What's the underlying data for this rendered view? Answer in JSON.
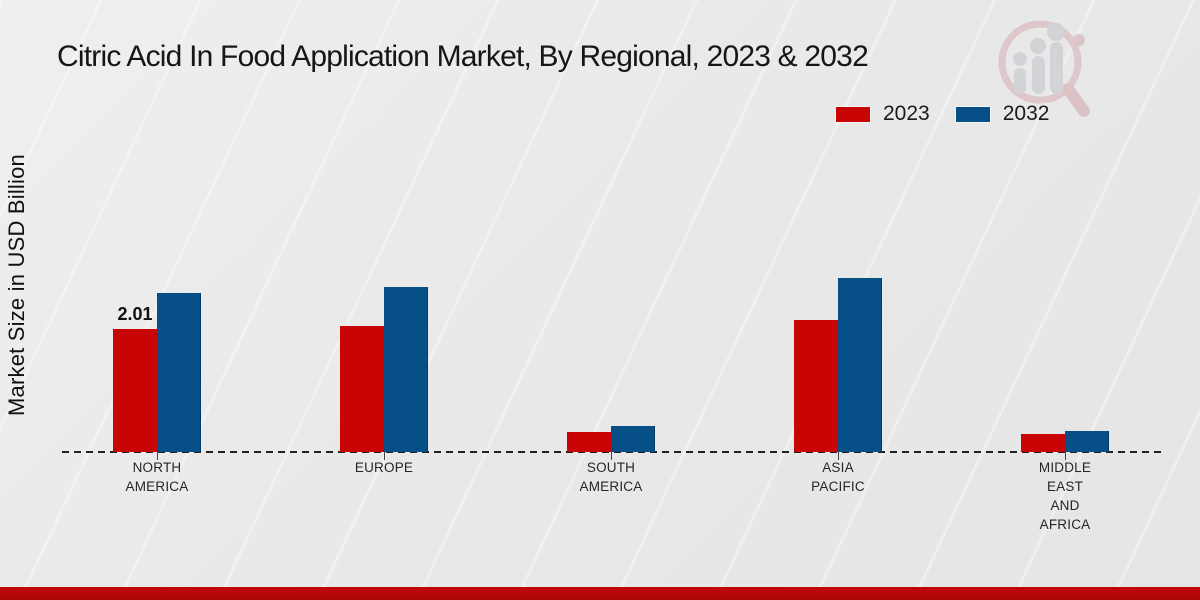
{
  "page": {
    "title": "Citric Acid In Food Application Market, By Regional, 2023 & 2032",
    "ylabel": "Market Size in USD Billion"
  },
  "colors": {
    "series_2023": "#c80404",
    "series_2032": "#074f87",
    "footer_band": "#b40808",
    "background": "#e9e9e9",
    "baseline": "#222222"
  },
  "legend": {
    "position": "top-right",
    "items": [
      {
        "label": "2023",
        "color": "#c80404"
      },
      {
        "label": "2032",
        "color": "#074f87"
      }
    ]
  },
  "chart_data": {
    "type": "bar",
    "title": "Citric Acid In Food Application Market, By Regional, 2023 & 2032",
    "xlabel": "",
    "ylabel": "Market Size in USD Billion",
    "categories": [
      "NORTH AMERICA",
      "EUROPE",
      "SOUTH AMERICA",
      "ASIA PACIFIC",
      "MIDDLE EAST AND AFRICA"
    ],
    "category_display": [
      "NORTH\nAMERICA",
      "EUROPE",
      "SOUTH\nAMERICA",
      "ASIA\nPACIFIC",
      "MIDDLE\nEAST\nAND\nAFRICA"
    ],
    "series": [
      {
        "name": "2023",
        "color": "#c80404",
        "values": [
          2.01,
          2.06,
          0.33,
          2.16,
          0.29
        ]
      },
      {
        "name": "2032",
        "color": "#074f87",
        "values": [
          2.6,
          2.7,
          0.42,
          2.85,
          0.34
        ]
      }
    ],
    "value_labels": [
      {
        "series_index": 0,
        "category_index": 0,
        "text": "2.01"
      }
    ],
    "ylim": [
      0,
      3
    ],
    "grid": false,
    "y_tick_labels_visible": false,
    "baseline_style": "dashed",
    "legend_position": "top-right"
  },
  "watermark": {
    "name": "market-research-future-logo"
  }
}
